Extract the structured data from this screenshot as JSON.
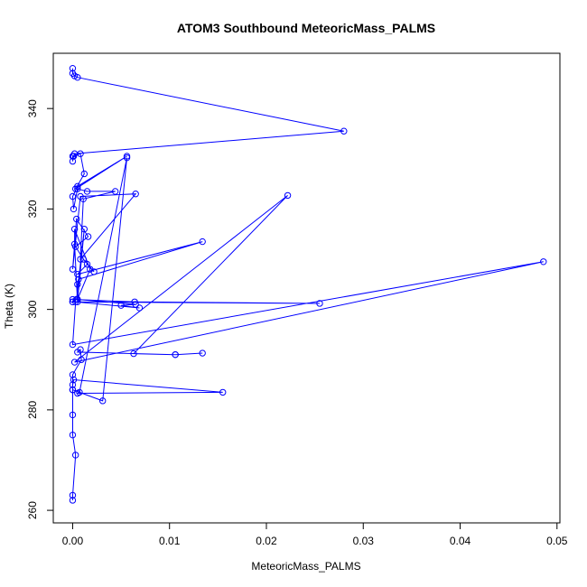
{
  "chart_data": {
    "type": "line",
    "title": "ATOM3 Southbound MeteoricMass_PALMS",
    "xlabel": "MeteoricMass_PALMS",
    "ylabel": "Theta (K)",
    "xlim": [
      -0.002,
      0.0503
    ],
    "ylim": [
      257.5,
      351.0
    ],
    "x_ticks": [
      0,
      0.01,
      0.02,
      0.03,
      0.04,
      0.05
    ],
    "x_tick_labels": [
      "0.00",
      "0.01",
      "0.02",
      "0.03",
      "0.04",
      "0.05"
    ],
    "y_ticks": [
      260,
      280,
      300,
      320,
      340
    ],
    "y_tick_labels": [
      "260",
      "280",
      "300",
      "320",
      "340"
    ],
    "grid": false,
    "legend": "none",
    "series": [
      {
        "color": "#0000ff",
        "marker": "open-circle",
        "x": [
          0,
          0,
          0.0002,
          0.0005,
          0.028,
          0.0002,
          0.0001,
          0,
          0,
          0.0008,
          0.0012,
          0.0003,
          0.0056,
          0.0005,
          0,
          0.0001,
          0.0005,
          0.0015,
          0.0044,
          0.0011,
          0.0008,
          0.0065,
          0.0008,
          0,
          0.0004,
          0.0016,
          0.0003,
          0.0011,
          0.0022,
          0.0015,
          0.0005,
          0.0134,
          0.0006,
          0.0005,
          0.0005,
          0.0018,
          0.0002,
          0.0002,
          0.0005,
          0.0012,
          0.0004,
          0,
          0.0064,
          0.0255,
          0,
          0,
          0.0004,
          0.0065,
          0.005,
          0.0069,
          0.0003,
          0,
          0.0486,
          0.0002,
          0.0222,
          0.0063,
          0.0106,
          0.0134,
          0.0106,
          0.0005,
          0.0008,
          0.0009,
          0,
          0,
          0,
          0.0031,
          0.0056,
          0.0007,
          0.0005,
          0.0155,
          0.0001,
          0,
          0,
          0,
          0.0003,
          0,
          0
        ],
        "y": [
          348,
          347,
          346.5,
          346.2,
          335.5,
          331,
          330.5,
          329.5,
          330.5,
          331,
          327,
          324,
          330.5,
          324.5,
          322.5,
          320,
          324,
          323.5,
          323.5,
          322,
          310,
          323,
          322.5,
          308,
          318,
          314.5,
          312.5,
          310,
          307.5,
          309,
          307,
          313.5,
          306,
          305,
          302,
          308,
          316,
          313,
          301.5,
          316,
          302,
          302,
          301.5,
          301.2,
          301.5,
          301.5,
          302,
          301,
          300.8,
          300.3,
          301.5,
          293,
          309.5,
          289.5,
          322.7,
          291.2,
          291.0,
          291.3,
          291.0,
          291.5,
          292,
          290,
          287,
          284,
          284,
          281.8,
          330.2,
          283.5,
          283.3,
          283.5,
          286,
          285,
          279,
          275,
          271,
          263,
          262
        ]
      }
    ]
  }
}
